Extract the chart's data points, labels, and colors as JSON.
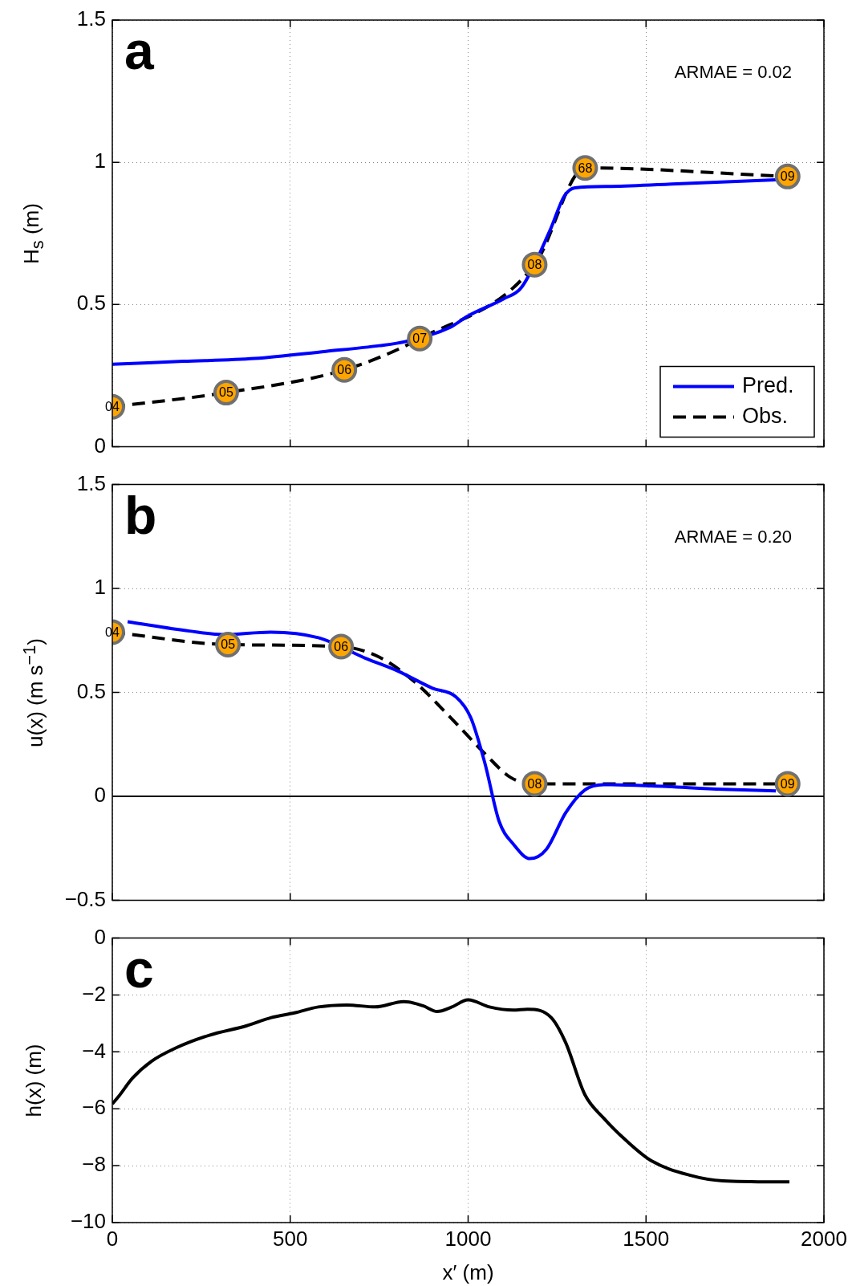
{
  "chart_data": [
    {
      "type": "line",
      "ylabel": "H$_{s}$ (m)",
      "annotations": [
        "a",
        "ARMAE = 0.02",
        {
          "text": "04",
          "x": 0,
          "y": 0.14
        },
        {
          "text": "05",
          "x": 320,
          "y": 0.19
        },
        {
          "text": "06",
          "x": 652,
          "y": 0.27
        },
        {
          "text": "07",
          "x": 864,
          "y": 0.38
        },
        {
          "text": "08",
          "x": 1187,
          "y": 0.64
        },
        {
          "text": "68",
          "x": 1329,
          "y": 0.98
        },
        {
          "text": "09",
          "x": 1898,
          "y": 0.95
        }
      ],
      "xlim": [
        0,
        2000
      ],
      "xticks": [
        0,
        500,
        1000,
        1500,
        2000
      ],
      "ylim": [
        0,
        1.5
      ],
      "yticks": [
        0,
        0.5,
        1,
        1.5
      ],
      "grid": true,
      "legend": "bottom right",
      "tick_labels": "y",
      "series": [
        {
          "name": "Pred.",
          "color": "#0000ff",
          "x": [
            0,
            200,
            400,
            600,
            750,
            825,
            950,
            1000,
            1100,
            1150,
            1230,
            1270,
            1300,
            1400,
            1600,
            1865
          ],
          "values": [
            0.29,
            0.3,
            0.31,
            0.335,
            0.355,
            0.37,
            0.42,
            0.46,
            0.52,
            0.56,
            0.76,
            0.88,
            0.91,
            0.915,
            0.925,
            0.938
          ]
        },
        {
          "name": "Obs.",
          "color": "#000000",
          "line_style": "dashed",
          "x": [
            0,
            320,
            652,
            864,
            1187,
            1329,
            1898
          ],
          "values": [
            0.14,
            0.19,
            0.27,
            0.38,
            0.64,
            0.98,
            0.95
          ]
        },
        {
          "type": "scatter",
          "color": "#ffa500",
          "marker": "circle",
          "x": [
            0,
            320,
            652,
            864,
            1187,
            1329,
            1898
          ],
          "values": [
            0.14,
            0.19,
            0.27,
            0.38,
            0.64,
            0.98,
            0.95
          ]
        }
      ]
    },
    {
      "type": "line",
      "ylabel": "u(x) (m s$^{−1}$)",
      "annotations": [
        "b",
        "ARMAE = 0.20",
        {
          "text": "04",
          "x": 0,
          "y": 0.79
        },
        {
          "text": "05",
          "x": 325,
          "y": 0.73
        },
        {
          "text": "06",
          "x": 643,
          "y": 0.72
        },
        {
          "text": "08",
          "x": 1187,
          "y": 0.06
        },
        {
          "text": "09",
          "x": 1898,
          "y": 0.06
        }
      ],
      "xlim": [
        0,
        2000
      ],
      "xticks": [
        0,
        500,
        1000,
        1500,
        2000
      ],
      "ylim": [
        -0.5,
        1.5
      ],
      "yticks": [
        {
          "value": -0.5,
          "label": "−0.5"
        },
        0,
        0.5,
        1,
        1.5
      ],
      "grid": true,
      "tick_labels": "y",
      "ref_lines": [
        {
          "axis": "y",
          "value": 0,
          "color": "#000000"
        }
      ],
      "series": [
        {
          "color": "#0000ff",
          "x": [
            43,
            217,
            311,
            445,
            579,
            712,
            806,
            900,
            966,
            1007,
            1047,
            1087,
            1127,
            1174,
            1220,
            1274,
            1328,
            1381,
            1515,
            1715,
            1865
          ],
          "values": [
            0.84,
            0.795,
            0.778,
            0.79,
            0.763,
            0.664,
            0.6,
            0.52,
            0.478,
            0.38,
            0.16,
            -0.12,
            -0.23,
            -0.3,
            -0.255,
            -0.08,
            0.03,
            0.056,
            0.05,
            0.034,
            0.026
          ]
        },
        {
          "color": "#000000",
          "line_style": "dashed",
          "x": [
            0,
            325,
            643,
            750,
            850,
            950,
            1050,
            1120,
            1187,
            1500,
            1898
          ],
          "values": [
            0.79,
            0.73,
            0.72,
            0.67,
            0.55,
            0.38,
            0.2,
            0.09,
            0.06,
            0.06,
            0.06
          ]
        },
        {
          "type": "scatter",
          "color": "#ffa500",
          "marker": "circle",
          "x": [
            0,
            325,
            643,
            1187,
            1898
          ],
          "values": [
            0.79,
            0.73,
            0.72,
            0.06,
            0.06
          ]
        }
      ]
    },
    {
      "type": "line",
      "xlabel": "x′ (m)",
      "ylabel": "h(x) (m)",
      "annotations": [
        "c"
      ],
      "xlim": [
        0,
        2000
      ],
      "xticks": [
        0,
        500,
        1000,
        1500,
        2000
      ],
      "ylim": [
        -10,
        0
      ],
      "yticks": [
        {
          "value": -10,
          "label": "−10"
        },
        {
          "value": -8,
          "label": "−8"
        },
        {
          "value": -6,
          "label": "−6"
        },
        {
          "value": -4,
          "label": "−4"
        },
        {
          "value": -2,
          "label": "−2"
        },
        0
      ],
      "grid": true,
      "series": [
        {
          "color": "#000000",
          "x": [
            0,
            17,
            57,
            110,
            177,
            271,
            378,
            445,
            512,
            579,
            659,
            739,
            819,
            873,
            913,
            953,
            1000,
            1060,
            1127,
            1167,
            1234,
            1274,
            1328,
            1381,
            1448,
            1515,
            1622,
            1715,
            1903
          ],
          "values": [
            -5.83,
            -5.58,
            -4.92,
            -4.33,
            -3.87,
            -3.42,
            -3.08,
            -2.8,
            -2.63,
            -2.42,
            -2.35,
            -2.42,
            -2.23,
            -2.38,
            -2.58,
            -2.43,
            -2.17,
            -2.42,
            -2.53,
            -2.5,
            -2.8,
            -3.67,
            -5.5,
            -6.33,
            -7.16,
            -7.83,
            -8.33,
            -8.53,
            -8.57
          ]
        }
      ]
    }
  ]
}
